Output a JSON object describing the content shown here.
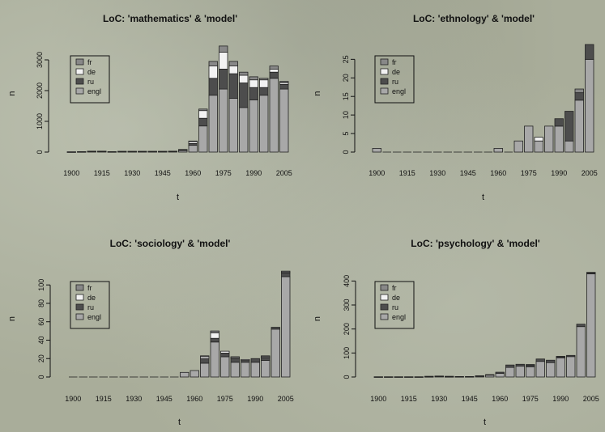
{
  "colors": {
    "fr": "#888888",
    "de": "#f2f2f2",
    "ru": "#4d4d4d",
    "engl": "#a8a8a8",
    "axis": "#111111"
  },
  "chart_data": [
    {
      "type": "bar",
      "stacked": true,
      "title": "LoC: 'mathematics' & 'model'",
      "xlabel": "t",
      "ylabel": "n",
      "x_ticks": [
        "1900",
        "1915",
        "1930",
        "1945",
        "1960",
        "1975",
        "1990",
        "2005"
      ],
      "y_ticks": [
        0,
        1000,
        2000,
        3000
      ],
      "ylim": [
        0,
        3500
      ],
      "legend_position": "top-left",
      "categories": [
        "1900",
        "1905",
        "1910",
        "1915",
        "1920",
        "1925",
        "1930",
        "1935",
        "1940",
        "1945",
        "1950",
        "1955",
        "1960",
        "1965",
        "1970",
        "1975",
        "1980",
        "1985",
        "1990",
        "1995",
        "2000",
        "2005"
      ],
      "series": [
        {
          "name": "engl",
          "values": [
            10,
            15,
            25,
            25,
            15,
            20,
            20,
            20,
            20,
            20,
            25,
            60,
            220,
            850,
            1850,
            2050,
            1750,
            1450,
            1700,
            1850,
            2400,
            2050
          ]
        },
        {
          "name": "ru",
          "values": [
            0,
            0,
            5,
            5,
            0,
            5,
            5,
            5,
            5,
            5,
            5,
            10,
            60,
            250,
            550,
            650,
            800,
            800,
            400,
            250,
            200,
            150
          ]
        },
        {
          "name": "de",
          "values": [
            0,
            0,
            0,
            0,
            0,
            0,
            0,
            0,
            0,
            0,
            0,
            10,
            60,
            250,
            400,
            550,
            250,
            250,
            250,
            250,
            100,
            50
          ]
        },
        {
          "name": "fr",
          "values": [
            0,
            0,
            0,
            0,
            0,
            0,
            0,
            0,
            0,
            0,
            0,
            5,
            20,
            50,
            150,
            200,
            150,
            100,
            100,
            50,
            100,
            50
          ]
        }
      ]
    },
    {
      "type": "bar",
      "stacked": true,
      "title": "LoC: 'ethnology' & 'model'",
      "xlabel": "t",
      "ylabel": "n",
      "x_ticks": [
        "1900",
        "1915",
        "1930",
        "1945",
        "1960",
        "1975",
        "1990",
        "2005"
      ],
      "y_ticks": [
        0,
        5,
        10,
        15,
        20,
        25
      ],
      "ylim": [
        0,
        29
      ],
      "legend_position": "top-left",
      "categories": [
        "1900",
        "1905",
        "1910",
        "1915",
        "1920",
        "1925",
        "1930",
        "1935",
        "1940",
        "1945",
        "1950",
        "1955",
        "1960",
        "1965",
        "1970",
        "1975",
        "1980",
        "1985",
        "1990",
        "1995",
        "2000",
        "2005"
      ],
      "series": [
        {
          "name": "engl",
          "values": [
            1,
            0,
            0,
            0,
            0,
            0,
            0,
            0,
            0,
            0,
            0,
            0,
            1,
            0,
            3,
            7,
            3,
            7,
            7,
            3,
            14,
            25
          ]
        },
        {
          "name": "ru",
          "values": [
            0,
            0,
            0,
            0,
            0,
            0,
            0,
            0,
            0,
            0,
            0,
            0,
            0,
            0,
            0,
            0,
            0,
            0,
            2,
            8,
            2,
            4
          ]
        },
        {
          "name": "de",
          "values": [
            0,
            0,
            0,
            0,
            0,
            0,
            0,
            0,
            0,
            0,
            0,
            0,
            0,
            0,
            0,
            0,
            1,
            0,
            0,
            0,
            0,
            0
          ]
        },
        {
          "name": "fr",
          "values": [
            0,
            0,
            0,
            0,
            0,
            0,
            0,
            0,
            0,
            0,
            0,
            0,
            0,
            0,
            0,
            0,
            0,
            0,
            0,
            0,
            1,
            0
          ]
        }
      ]
    },
    {
      "type": "bar",
      "stacked": true,
      "title": "LoC: 'sociology' & 'model'",
      "xlabel": "t",
      "ylabel": "n",
      "x_ticks": [
        "1900",
        "1915",
        "1930",
        "1945",
        "1960",
        "1975",
        "1990",
        "2005"
      ],
      "y_ticks": [
        0,
        20,
        40,
        60,
        80,
        100
      ],
      "ylim": [
        0,
        116
      ],
      "legend_position": "top-left",
      "categories": [
        "1900",
        "1905",
        "1910",
        "1915",
        "1920",
        "1925",
        "1930",
        "1935",
        "1940",
        "1945",
        "1950",
        "1955",
        "1960",
        "1965",
        "1970",
        "1975",
        "1980",
        "1985",
        "1990",
        "1995",
        "2000",
        "2005"
      ],
      "series": [
        {
          "name": "engl",
          "values": [
            0,
            0,
            0,
            0,
            0,
            0,
            0,
            0,
            0,
            0,
            0,
            5,
            7,
            15,
            38,
            22,
            16,
            16,
            16,
            18,
            52,
            109
          ]
        },
        {
          "name": "ru",
          "values": [
            0,
            0,
            0,
            0,
            0,
            0,
            0,
            0,
            0,
            0,
            0,
            0,
            0,
            5,
            4,
            4,
            4,
            2,
            4,
            3,
            2,
            4
          ]
        },
        {
          "name": "de",
          "values": [
            0,
            0,
            0,
            0,
            0,
            0,
            0,
            0,
            0,
            0,
            0,
            0,
            0,
            2,
            6,
            2,
            1,
            1,
            0,
            1,
            0,
            1
          ]
        },
        {
          "name": "fr",
          "values": [
            0,
            0,
            0,
            0,
            0,
            0,
            0,
            0,
            0,
            0,
            0,
            0,
            0,
            1,
            2,
            0,
            1,
            0,
            0,
            1,
            0,
            1
          ]
        }
      ]
    },
    {
      "type": "bar",
      "stacked": true,
      "title": "LoC: 'psychology' & 'model'",
      "xlabel": "t",
      "ylabel": "n",
      "x_ticks": [
        "1900",
        "1915",
        "1930",
        "1945",
        "1960",
        "1975",
        "1990",
        "2005"
      ],
      "y_ticks": [
        0,
        100,
        200,
        300,
        400
      ],
      "ylim": [
        0,
        445
      ],
      "legend_position": "top-left",
      "categories": [
        "1900",
        "1905",
        "1910",
        "1915",
        "1920",
        "1925",
        "1930",
        "1935",
        "1940",
        "1945",
        "1950",
        "1955",
        "1960",
        "1965",
        "1970",
        "1975",
        "1980",
        "1985",
        "1990",
        "1995",
        "2000",
        "2005"
      ],
      "series": [
        {
          "name": "engl",
          "values": [
            1,
            1,
            1,
            1,
            1,
            2,
            3,
            2,
            2,
            2,
            4,
            8,
            15,
            40,
            45,
            42,
            65,
            60,
            80,
            85,
            210,
            430
          ]
        },
        {
          "name": "ru",
          "values": [
            0,
            0,
            0,
            0,
            0,
            1,
            1,
            1,
            0,
            0,
            1,
            2,
            5,
            10,
            8,
            8,
            10,
            10,
            5,
            5,
            10,
            5
          ]
        },
        {
          "name": "de",
          "values": [
            0,
            0,
            0,
            0,
            0,
            0,
            0,
            0,
            0,
            0,
            0,
            0,
            0,
            0,
            0,
            2,
            0,
            0,
            1,
            0,
            0,
            1
          ]
        },
        {
          "name": "fr",
          "values": [
            0,
            0,
            0,
            0,
            0,
            0,
            0,
            0,
            0,
            0,
            0,
            0,
            0,
            0,
            0,
            0,
            0,
            0,
            0,
            0,
            0,
            0
          ]
        }
      ]
    }
  ]
}
